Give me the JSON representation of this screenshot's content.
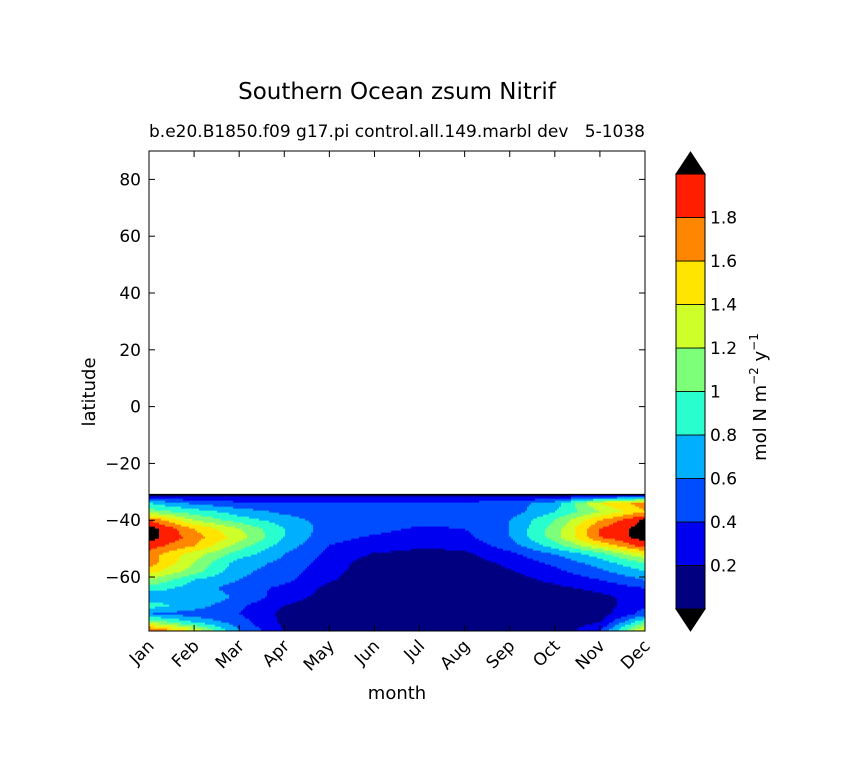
{
  "chart_data": {
    "type": "contourf",
    "title": "Southern Ocean zsum Nitrif",
    "subtitle_left": "b.e20.B1850.f09 g17.pi control.all.149.marbl dev",
    "subtitle_right": "5-1038",
    "xlabel": "month",
    "ylabel": "latitude",
    "x_categories": [
      "Jan",
      "Feb",
      "Mar",
      "Apr",
      "May",
      "Jun",
      "Jul",
      "Aug",
      "Sep",
      "Oct",
      "Nov",
      "Dec"
    ],
    "y_ticks": [
      80,
      60,
      40,
      20,
      0,
      -20,
      -40,
      -60
    ],
    "y_tick_labels": [
      "80",
      "60",
      "40",
      "20",
      "0",
      "−20",
      "−40",
      "−60"
    ],
    "ylim": [
      -79,
      90
    ],
    "data_lat_range": [
      -79,
      -31
    ],
    "levels": [
      0,
      0.2,
      0.4,
      0.6,
      0.8,
      1.0,
      1.2,
      1.4,
      1.6,
      1.8,
      2.0
    ],
    "level_colors": [
      "#000080",
      "#0000f1",
      "#004cff",
      "#00b0ff",
      "#29ffce",
      "#7dff7a",
      "#ceff29",
      "#ffe500",
      "#ff8600",
      "#ff1e00",
      "#800000"
    ],
    "extend_colors": {
      "under": "#000000",
      "over": "#000000"
    },
    "colorbar": {
      "ticks": [
        0.2,
        0.4,
        0.6,
        0.8,
        1.0,
        1.2,
        1.4,
        1.6,
        1.8
      ],
      "tick_labels": [
        "0.2",
        "0.4",
        "0.6",
        "0.8",
        "1",
        "1.2",
        "1.4",
        "1.6",
        "1.8"
      ],
      "label": "mol N m",
      "label_sup1": "−2",
      "label_mid": " y",
      "label_sup2": "−1"
    },
    "field": {
      "latitudes": [
        -31,
        -34,
        -37,
        -40,
        -43,
        -46,
        -49,
        -52,
        -55,
        -58,
        -61,
        -64,
        -67,
        -70,
        -73,
        -76,
        -79
      ],
      "months": [
        "Jan",
        "Feb",
        "Mar",
        "Apr",
        "May",
        "Jun",
        "Jul",
        "Aug",
        "Sep",
        "Oct",
        "Nov",
        "Dec"
      ],
      "values": [
        [
          0.1,
          0.1,
          0.1,
          0.1,
          0.1,
          0.1,
          0.1,
          0.1,
          0.1,
          0.1,
          0.1,
          0.1
        ],
        [
          0.8,
          0.55,
          0.45,
          0.4,
          0.45,
          0.45,
          0.45,
          0.45,
          0.5,
          0.7,
          1.4,
          1.7
        ],
        [
          1.1,
          0.9,
          0.7,
          0.55,
          0.45,
          0.45,
          0.45,
          0.45,
          0.5,
          0.8,
          1.2,
          1.6
        ],
        [
          1.8,
          1.2,
          0.9,
          0.7,
          0.5,
          0.45,
          0.45,
          0.45,
          0.6,
          1.0,
          1.6,
          2.05
        ],
        [
          2.1,
          1.6,
          1.2,
          0.8,
          0.5,
          0.45,
          0.38,
          0.4,
          0.6,
          1.1,
          1.8,
          2.1
        ],
        [
          2.1,
          1.7,
          1.3,
          0.8,
          0.45,
          0.38,
          0.3,
          0.35,
          0.6,
          1.1,
          1.8,
          2.1
        ],
        [
          1.9,
          1.6,
          1.1,
          0.7,
          0.4,
          0.3,
          0.22,
          0.25,
          0.5,
          0.9,
          1.4,
          1.9
        ],
        [
          1.7,
          1.3,
          0.9,
          0.6,
          0.35,
          0.18,
          0.15,
          0.16,
          0.35,
          0.6,
          0.9,
          1.4
        ],
        [
          1.7,
          1.2,
          0.7,
          0.55,
          0.3,
          0.1,
          0.08,
          0.1,
          0.25,
          0.45,
          0.7,
          1.0
        ],
        [
          1.5,
          1.1,
          0.65,
          0.5,
          0.25,
          0.1,
          0.08,
          0.08,
          0.18,
          0.35,
          0.55,
          0.8
        ],
        [
          1.2,
          0.8,
          0.6,
          0.45,
          0.22,
          0.1,
          0.08,
          0.08,
          0.12,
          0.25,
          0.4,
          0.6
        ],
        [
          0.9,
          0.7,
          0.5,
          0.35,
          0.15,
          0.1,
          0.08,
          0.08,
          0.1,
          0.15,
          0.25,
          0.4
        ],
        [
          0.6,
          0.8,
          0.55,
          0.3,
          0.12,
          0.05,
          0.05,
          0.05,
          0.05,
          0.1,
          0.15,
          0.3
        ],
        [
          0.9,
          0.7,
          0.45,
          0.2,
          0.08,
          0.05,
          0.05,
          0.05,
          0.05,
          0.05,
          0.1,
          0.35
        ],
        [
          0.6,
          0.5,
          0.4,
          0.15,
          0.05,
          0.05,
          0.05,
          0.05,
          0.05,
          0.05,
          0.1,
          0.5
        ],
        [
          1.2,
          0.8,
          0.5,
          0.15,
          0.05,
          0.05,
          0.05,
          0.05,
          0.05,
          0.05,
          0.2,
          1.0
        ],
        [
          1.9,
          1.4,
          0.6,
          0.2,
          0.05,
          0.05,
          0.05,
          0.05,
          0.05,
          0.05,
          0.4,
          1.5
        ]
      ]
    }
  }
}
